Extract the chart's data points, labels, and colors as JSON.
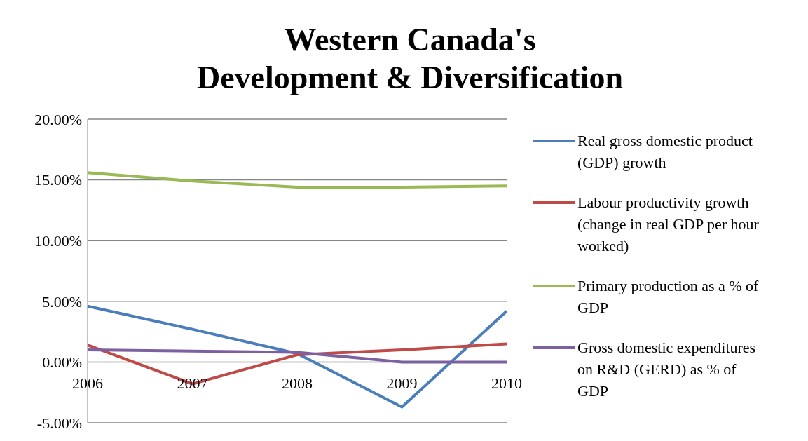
{
  "chart_data": {
    "type": "line",
    "title": "Western Canada's\nDevelopment & Diversification",
    "categories": [
      "2006",
      "2007",
      "2008",
      "2009",
      "2010"
    ],
    "series": [
      {
        "name": "Real gross domestic product (GDP) growth",
        "color": "#4a7ebb",
        "values": [
          4.6,
          2.7,
          0.7,
          -3.7,
          4.2
        ]
      },
      {
        "name": "Labour productivity growth (change in real GDP per hour worked)",
        "color": "#be4b48",
        "values": [
          1.4,
          -1.8,
          0.6,
          1.0,
          1.5
        ]
      },
      {
        "name": "Primary production as a % of GDP",
        "color": "#98b954",
        "values": [
          15.6,
          14.9,
          14.4,
          14.4,
          14.5
        ]
      },
      {
        "name": "Gross domestic expenditures on R&D (GERD) as % of GDP",
        "color": "#7d60a0",
        "values": [
          1.0,
          0.9,
          0.8,
          0.0,
          0.0
        ]
      }
    ],
    "ylim": [
      -5,
      20
    ],
    "yticks": [
      {
        "value": -5,
        "label": "-5.00%"
      },
      {
        "value": 0,
        "label": "0.00%"
      },
      {
        "value": 5,
        "label": "5.00%"
      },
      {
        "value": 10,
        "label": "10.00%"
      },
      {
        "value": 15,
        "label": "15.00%"
      },
      {
        "value": 20,
        "label": "20.00%"
      }
    ],
    "grid": "y",
    "legend": "right",
    "marker": "none",
    "line_style": "solid"
  }
}
